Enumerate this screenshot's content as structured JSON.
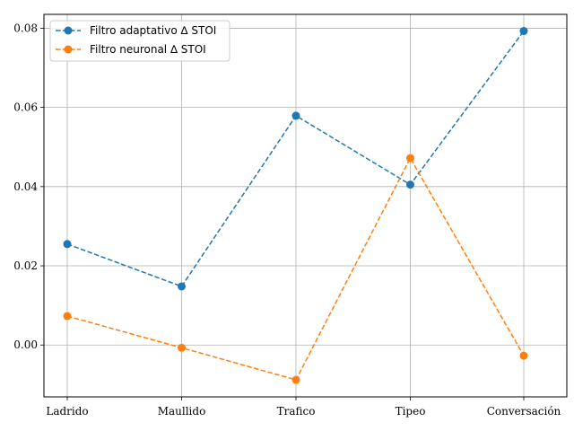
{
  "chart_data": {
    "type": "line",
    "categories": [
      "Ladrido",
      "Maullido",
      "Trafico",
      "Tipeo",
      "Conversación"
    ],
    "series": [
      {
        "name": "Filtro adaptativo ∆ STOI",
        "color": "#1f77b4",
        "values": [
          0.0255,
          0.0148,
          0.0579,
          0.0405,
          0.0793
        ]
      },
      {
        "name": "Filtro neuronal ∆ STOI",
        "color": "#ff7f0e",
        "values": [
          0.0073,
          -0.0007,
          -0.0088,
          0.0472,
          -0.0027
        ]
      }
    ],
    "yticks": [
      "0.00",
      "0.02",
      "0.04",
      "0.06",
      "0.08"
    ],
    "ylim": [
      -0.0131,
      0.0835
    ],
    "line_style": "dashed",
    "marker": "circle",
    "grid": true,
    "legend_position": "top-left"
  }
}
